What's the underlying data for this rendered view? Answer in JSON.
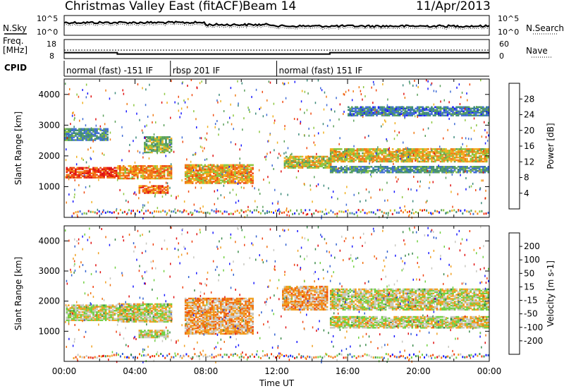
{
  "header": {
    "title": "Christmas Valley East (fitACF)",
    "beam": "Beam 14",
    "date": "11/Apr/2013"
  },
  "top_panels": {
    "nsky_label": "N.Sky",
    "nsearch_label": "N.Search",
    "noise_ticks": [
      "10^5",
      "10^0"
    ],
    "freq_label_1": "Freq.",
    "freq_label_2": "[MHz]",
    "freq_ticks": [
      "18",
      "8"
    ],
    "nave_ticks": [
      "60",
      "0"
    ],
    "nave_label": "Nave",
    "cpid_label": "CPID"
  },
  "cpid_segments": [
    {
      "label": "normal (fast) -151 IF",
      "start_hour": 0,
      "end_hour": 6
    },
    {
      "label": "rbsp 201 IF",
      "start_hour": 6,
      "end_hour": 12
    },
    {
      "label": "normal (fast) 151 IF",
      "start_hour": 12,
      "end_hour": 24
    }
  ],
  "chart_data": [
    {
      "type": "heatmap",
      "name": "power",
      "ylabel": "Slant Range [km]",
      "yticks": [
        1000,
        2000,
        3000,
        4000
      ],
      "ylim": [
        0,
        4500
      ],
      "xlim": [
        0,
        24
      ],
      "colorbar": {
        "label": "Power [dB]",
        "ticks": [
          "4",
          "8",
          "12",
          "16",
          "20",
          "24",
          "28"
        ],
        "colors": [
          "#1a1aff",
          "#3f6cd6",
          "#3c8a7a",
          "#5aa05a",
          "#8cc63f",
          "#f0b020",
          "#f07c16",
          "#f04a10",
          "#e01010"
        ]
      },
      "bands": [
        {
          "t0": 0.1,
          "t1": 3.0,
          "r0": 1280,
          "r1": 1640,
          "level": 0.85
        },
        {
          "t0": 3.0,
          "t1": 6.0,
          "r0": 1250,
          "r1": 1700,
          "level": 0.7
        },
        {
          "t0": 4.5,
          "t1": 6.0,
          "r0": 2100,
          "r1": 2600,
          "level": 0.45
        },
        {
          "t0": 4.2,
          "t1": 5.8,
          "r0": 780,
          "r1": 1050,
          "level": 0.75
        },
        {
          "t0": 6.8,
          "t1": 10.6,
          "r0": 1100,
          "r1": 1700,
          "level": 0.65
        },
        {
          "t0": 0.0,
          "t1": 2.5,
          "r0": 2500,
          "r1": 2900,
          "level": 0.3
        },
        {
          "t0": 12.4,
          "t1": 15.0,
          "r0": 1600,
          "r1": 2000,
          "level": 0.55
        },
        {
          "t0": 15.0,
          "t1": 24.0,
          "r0": 1800,
          "r1": 2250,
          "level": 0.6
        },
        {
          "t0": 15.0,
          "t1": 24.0,
          "r0": 1450,
          "r1": 1650,
          "level": 0.3
        },
        {
          "t0": 16.0,
          "t1": 24.0,
          "r0": 3300,
          "r1": 3600,
          "level": 0.25
        }
      ]
    },
    {
      "type": "heatmap",
      "name": "velocity",
      "ylabel": "Slant Range [km]",
      "yticks": [
        1000,
        2000,
        3000,
        4000
      ],
      "ylim": [
        0,
        4500
      ],
      "xlim": [
        0,
        24
      ],
      "xlabel": "Time UT",
      "xticks": [
        "00:00",
        "04:00",
        "08:00",
        "12:00",
        "16:00",
        "20:00",
        "00:00"
      ],
      "colorbar": {
        "label": "Velocity [m s-1]",
        "ticks": [
          "200",
          "100",
          "50",
          "15",
          "-15",
          "-50",
          "-100",
          "-200"
        ],
        "colors": [
          "#1a1aff",
          "#3060d0",
          "#3a8a4a",
          "#70d040",
          "#c8c8c0",
          "#f0a020",
          "#f07010",
          "#f04010",
          "#e01010"
        ]
      },
      "bands": [
        {
          "t0": 0.1,
          "t1": 3.0,
          "r0": 1350,
          "r1": 1850,
          "level": 0.5
        },
        {
          "t0": 3.0,
          "t1": 6.0,
          "r0": 1300,
          "r1": 1900,
          "level": 0.5
        },
        {
          "t0": 4.2,
          "t1": 5.8,
          "r0": 780,
          "r1": 1050,
          "level": 0.5
        },
        {
          "t0": 6.8,
          "t1": 10.6,
          "r0": 900,
          "r1": 2100,
          "level": 0.62
        },
        {
          "t0": 12.3,
          "t1": 14.8,
          "r0": 1700,
          "r1": 2500,
          "level": 0.62
        },
        {
          "t0": 15.0,
          "t1": 24.0,
          "r0": 1700,
          "r1": 2400,
          "level": 0.5
        },
        {
          "t0": 15.0,
          "t1": 24.0,
          "r0": 1100,
          "r1": 1500,
          "level": 0.5
        }
      ]
    }
  ]
}
